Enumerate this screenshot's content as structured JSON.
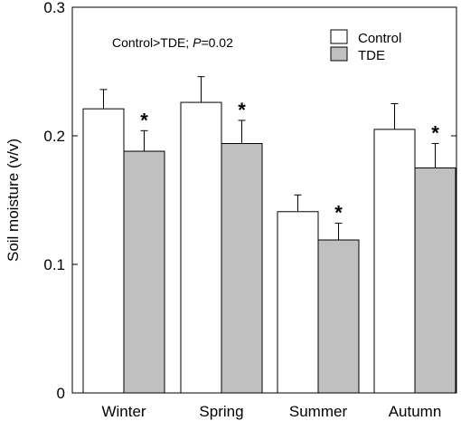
{
  "chart_data": {
    "type": "bar",
    "ylabel": "Soil moisture (v/v)",
    "ylim": [
      0,
      0.3
    ],
    "yticks": [
      "0",
      "0.1",
      "0.2",
      "0.3"
    ],
    "yticks_values": [
      0,
      0.1,
      0.2,
      0.3
    ],
    "categories": [
      "Winter",
      "Spring",
      "Summer",
      "Autumn"
    ],
    "series": [
      {
        "name": "Control",
        "values": [
          0.221,
          0.226,
          0.141,
          0.205
        ],
        "errors": [
          0.015,
          0.02,
          0.013,
          0.02
        ],
        "color": "#ffffff"
      },
      {
        "name": "TDE",
        "values": [
          0.188,
          0.194,
          0.119,
          0.175
        ],
        "errors": [
          0.016,
          0.018,
          0.013,
          0.019
        ],
        "color": "#c0c0c0"
      }
    ],
    "significance_marks": [
      "*",
      "*",
      "*",
      "*"
    ],
    "annotation": {
      "prefix": "Control>TDE; ",
      "p_symbol": "P",
      "p_value": "=0.02"
    },
    "legend_position": "top-right",
    "grid": false
  }
}
